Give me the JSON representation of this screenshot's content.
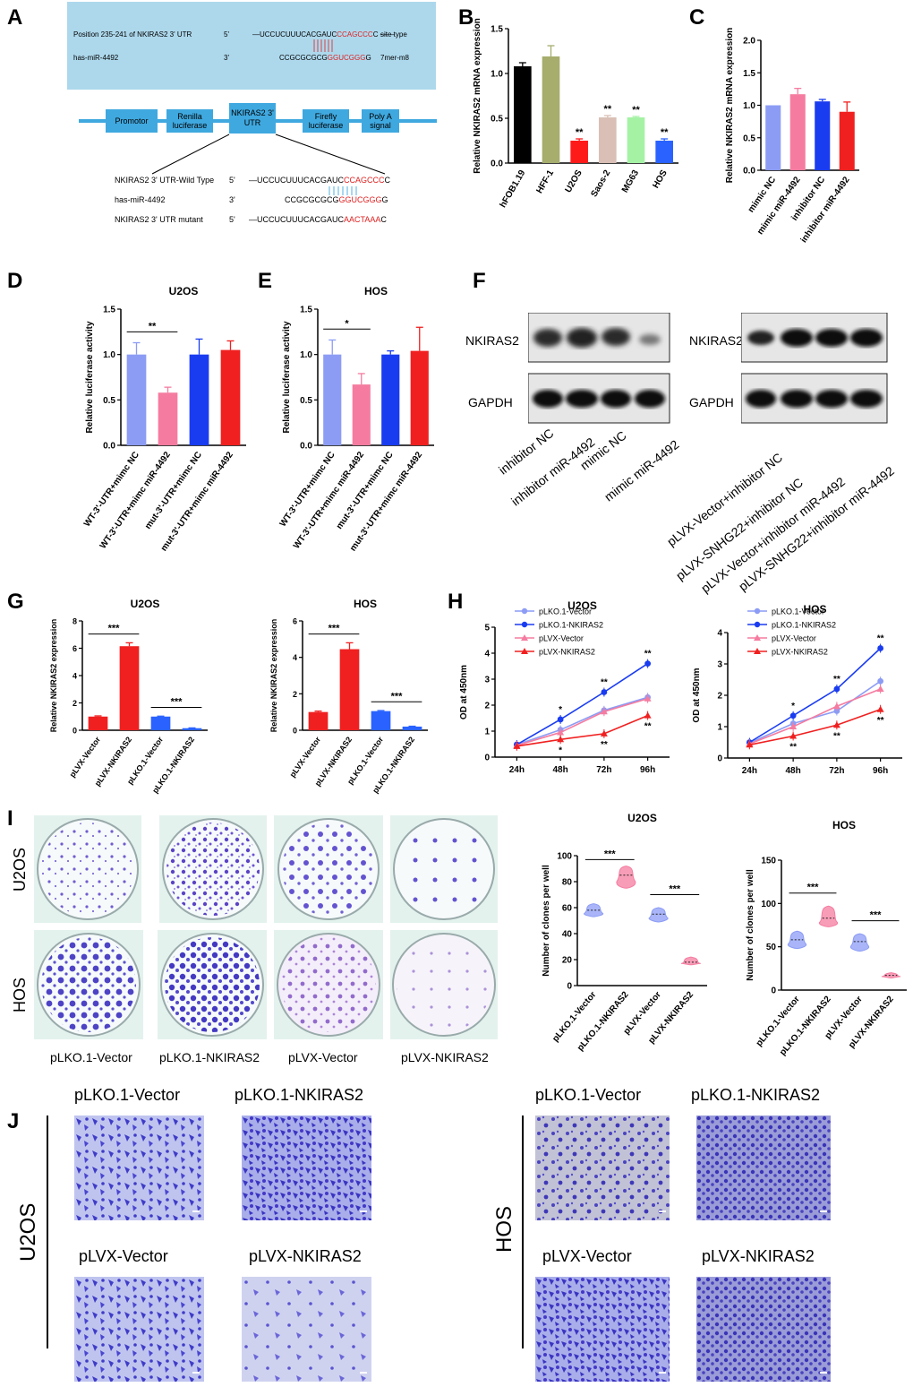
{
  "figure": {
    "panels": [
      "A",
      "B",
      "C",
      "D",
      "E",
      "F",
      "G",
      "H",
      "I",
      "J"
    ]
  },
  "panelA": {
    "row1_left": "Position 235-241 of NKIRAS2  3'  UTR",
    "row1_mid": "5'",
    "row1_seq_black": "—UCCUCUUUCACGAUC",
    "row1_seq_red": "CCAGCCC",
    "row1_seq_end": "C",
    "row1_right": "site type",
    "row2_left": "has-miR-4492",
    "row2_mid": "3'",
    "row2_seq_black": "CCGCGCGCG",
    "row2_seq_red": "GGUCGGG",
    "row2_seq_end": "G",
    "row2_right": "7mer-m8",
    "boxes": [
      "Promotor",
      "Renilla luciferase",
      "NKIRAS2 3' UTR",
      "Firefly luciferase",
      "Poly A signal"
    ],
    "wt_label": "NKIRAS2  3'  UTR-Wild Type",
    "wt_end": "5'",
    "wt_seq_black": "—UCCUCUUUCACGAUC",
    "wt_seq_red": "CCAGCCC",
    "wt_seq_end": "C",
    "mir_label": "has-miR-4492",
    "mir_end": "3'",
    "mir_seq_black": "CCGCGCGCG",
    "mir_seq_red": "GGUCGGG",
    "mir_seq_end": "G",
    "mut_label": "NKIRAS2  3'  UTR mutant",
    "mut_end": "5'",
    "mut_seq_black": "—UCCUCUUUCACGAUC",
    "mut_seq_red": "AACTAAA",
    "mut_seq_end": "C"
  },
  "panelF": {
    "left_bands": [
      "NKIRAS2",
      "GAPDH"
    ],
    "right_bands": [
      "NKIRAS2",
      "GAPDH"
    ],
    "left_lanes": [
      "inhibitor NC",
      "inhibitor miR-4492",
      "mimic NC",
      "mimic miR-4492"
    ],
    "right_lanes": [
      "pLVX-Vector+inhibitor NC",
      "pLVX-SNHG22+inhibitor NC",
      "pLVX-Vector+inhibitor miR-4492",
      "pLVX-SNHG22+inhibitor miR-4492"
    ]
  },
  "panelI": {
    "rows": [
      "U2OS",
      "HOS"
    ],
    "cols": [
      "pLKO.1-Vector",
      "pLKO.1-NKIRAS2",
      "pLVX-Vector",
      "pLVX-NKIRAS2"
    ]
  },
  "panelJ": {
    "left_cell": "U2OS",
    "right_cell": "HOS",
    "top_titles": [
      "pLKO.1-Vector",
      "pLKO.1-NKIRAS2"
    ],
    "bottom_titles": [
      "pLVX-Vector",
      "pLVX-NKIRAS2"
    ]
  },
  "colors": {
    "black": "#000000",
    "olive": "#a6ad6d",
    "red": "#ff1a1a",
    "tan": "#d9bfb5",
    "green": "#a5f2a5",
    "blue": "#2962ff",
    "periwinkle": "#8c9cf5",
    "pink": "#f57ca0",
    "royal": "#1a3cf0",
    "crimson": "#f02020",
    "lightblue_box": "#add8ec",
    "stain": "#4a3fbf"
  },
  "chart_data": [
    {
      "id": "B",
      "type": "bar",
      "ylabel": "Relative NKIRAS2 mRNA expression",
      "categories": [
        "hFOB1.19",
        "HFF-1",
        "U2OS",
        "Saos-2",
        "MG63",
        "HOS"
      ],
      "values": [
        1.08,
        1.19,
        0.25,
        0.51,
        0.51,
        0.25
      ],
      "errors": [
        0.04,
        0.12,
        0.02,
        0.02,
        0.01,
        0.02
      ],
      "significance": [
        "",
        "",
        "**",
        "**",
        "**",
        "**"
      ],
      "colors": [
        "#000000",
        "#a6ad6d",
        "#ff1a1a",
        "#d9bfb5",
        "#a5f2a5",
        "#2962ff"
      ],
      "ylim": [
        0,
        1.5
      ],
      "yticks": [
        "0.0",
        "0.5",
        "1.0",
        "1.5"
      ]
    },
    {
      "id": "C",
      "type": "bar",
      "ylabel": "Relative NKIRAS2 mRNA expression",
      "categories": [
        "mimic NC",
        "mimic miR-4492",
        "inhibitor NC",
        "inhibitor miR-4492"
      ],
      "values": [
        1.0,
        1.17,
        1.06,
        0.9
      ],
      "errors": [
        0.0,
        0.09,
        0.03,
        0.15
      ],
      "colors": [
        "#8c9cf5",
        "#f57ca0",
        "#1a3cf0",
        "#f02020"
      ],
      "ylim": [
        0,
        2.0
      ],
      "yticks": [
        "0.0",
        "0.5",
        "1.0",
        "1.5",
        "2.0"
      ]
    },
    {
      "id": "D",
      "type": "bar",
      "title": "U2OS",
      "ylabel": "Relative luciferase activity",
      "categories": [
        "WT-3'-UTR+mimc NC",
        "WT-3'-UTR+mimc miR-4492",
        "mut-3'-UTR+mimc NC",
        "mut-3'-UTR+mimc miR-4492"
      ],
      "values": [
        1.0,
        0.58,
        1.0,
        1.05
      ],
      "errors": [
        0.13,
        0.06,
        0.17,
        0.1
      ],
      "colors": [
        "#8c9cf5",
        "#f57ca0",
        "#1a3cf0",
        "#f02020"
      ],
      "bracket": {
        "from": 0,
        "to": 1,
        "label": "**"
      },
      "ylim": [
        0,
        1.5
      ],
      "yticks": [
        "0.0",
        "0.5",
        "1.0",
        "1.5"
      ]
    },
    {
      "id": "E",
      "type": "bar",
      "title": "HOS",
      "ylabel": "Relative luciferase activity",
      "categories": [
        "WT-3'-UTR+mimc NC",
        "WT-3'-UTR+mimc miR-4492",
        "mut-3'-UTR+mimc NC",
        "mut-3'-UTR+mimc miR-4492"
      ],
      "values": [
        1.0,
        0.67,
        1.0,
        1.04
      ],
      "errors": [
        0.16,
        0.12,
        0.04,
        0.26
      ],
      "colors": [
        "#8c9cf5",
        "#f57ca0",
        "#1a3cf0",
        "#f02020"
      ],
      "bracket": {
        "from": 0,
        "to": 1,
        "label": "*"
      },
      "ylim": [
        0,
        1.5
      ],
      "yticks": [
        "0.0",
        "0.5",
        "1.0",
        "1.5"
      ]
    },
    {
      "id": "G1",
      "type": "bar",
      "title": "U2OS",
      "ylabel": "Relative NKIRAS2 expression",
      "categories": [
        "pLVX-Vector",
        "pLVX-NKIRAS2",
        "pLKO.1-Vector",
        "pLKO.1-NKIRAS2"
      ],
      "values": [
        1.0,
        6.15,
        1.0,
        0.15
      ],
      "errors": [
        0.05,
        0.25,
        0.03,
        0.02
      ],
      "colors": [
        "#f02020",
        "#f02020",
        "#2962ff",
        "#2962ff"
      ],
      "brackets": [
        {
          "from": 0,
          "to": 1,
          "label": "***"
        },
        {
          "from": 2,
          "to": 3,
          "label": "***"
        }
      ],
      "ylim": [
        0,
        8
      ],
      "yticks": [
        "0",
        "2",
        "4",
        "6",
        "8"
      ]
    },
    {
      "id": "G2",
      "type": "bar",
      "title": "HOS",
      "ylabel": "Relative NKIRAS2 expression",
      "categories": [
        "pLVX-Vector",
        "pLVX-NKIRAS2",
        "pLKO.1-Vector",
        "pLKO.1-NKIRAS2"
      ],
      "values": [
        1.0,
        4.45,
        1.05,
        0.2
      ],
      "errors": [
        0.05,
        0.35,
        0.03,
        0.02
      ],
      "colors": [
        "#f02020",
        "#f02020",
        "#2962ff",
        "#2962ff"
      ],
      "brackets": [
        {
          "from": 0,
          "to": 1,
          "label": "***"
        },
        {
          "from": 2,
          "to": 3,
          "label": "***"
        }
      ],
      "ylim": [
        0,
        6
      ],
      "yticks": [
        "0",
        "2",
        "4",
        "6"
      ]
    },
    {
      "id": "H1",
      "type": "line",
      "title": "U2OS",
      "ylabel": "OD at 450nm",
      "categories": [
        "24h",
        "48h",
        "72h",
        "96h"
      ],
      "series": [
        {
          "name": "pLKO.1-Vector",
          "values": [
            0.48,
            1.05,
            1.8,
            2.3
          ],
          "color": "#8c9cf5",
          "marker": "circle"
        },
        {
          "name": "pLKO.1-NKIRAS2",
          "values": [
            0.48,
            1.45,
            2.5,
            3.6
          ],
          "color": "#1a3cf0",
          "marker": "circle"
        },
        {
          "name": "pLVX-Vector",
          "values": [
            0.45,
            0.95,
            1.75,
            2.25
          ],
          "color": "#f57ca0",
          "marker": "triangle"
        },
        {
          "name": "pLVX-NKIRAS2",
          "values": [
            0.42,
            0.68,
            0.9,
            1.6
          ],
          "color": "#f02020",
          "marker": "triangle"
        }
      ],
      "sig_top": [
        "",
        "*",
        "**",
        "**"
      ],
      "sig_bottom": [
        "",
        "*",
        "**",
        "**"
      ],
      "ylim": [
        0,
        5
      ],
      "yticks": [
        "0",
        "1",
        "2",
        "3",
        "4",
        "5"
      ]
    },
    {
      "id": "H2",
      "type": "line",
      "title": "HOS",
      "ylabel": "OD at 450nm",
      "categories": [
        "24h",
        "48h",
        "72h",
        "96h"
      ],
      "series": [
        {
          "name": "pLKO.1-Vector",
          "values": [
            0.48,
            1.1,
            1.5,
            2.45
          ],
          "color": "#8c9cf5",
          "marker": "circle"
        },
        {
          "name": "pLKO.1-NKIRAS2",
          "values": [
            0.5,
            1.35,
            2.2,
            3.5
          ],
          "color": "#1a3cf0",
          "marker": "circle"
        },
        {
          "name": "pLVX-Vector",
          "values": [
            0.45,
            1.0,
            1.65,
            2.2
          ],
          "color": "#f57ca0",
          "marker": "triangle"
        },
        {
          "name": "pLVX-NKIRAS2",
          "values": [
            0.42,
            0.7,
            1.05,
            1.55
          ],
          "color": "#f02020",
          "marker": "triangle"
        }
      ],
      "sig_top": [
        "",
        "*",
        "**",
        "**"
      ],
      "sig_bottom": [
        "",
        "**",
        "**",
        "**"
      ],
      "ylim": [
        0,
        4
      ],
      "yticks": [
        "0",
        "1",
        "2",
        "3",
        "4"
      ]
    },
    {
      "id": "I1",
      "type": "violin",
      "title": "U2OS",
      "ylabel": "Number of clones per well",
      "categories": [
        "pLKO.1-Vector",
        "pLKO.1-NKIRAS2",
        "pLVX-Vector",
        "pLVX-NKIRAS2"
      ],
      "ranges": [
        [
          53,
          63
        ],
        [
          75,
          92
        ],
        [
          49,
          60
        ],
        [
          16,
          22
        ]
      ],
      "medians": [
        58,
        85,
        55,
        18
      ],
      "colors": [
        "#8c9cf5",
        "#f57ca0",
        "#8c9cf5",
        "#f57ca0"
      ],
      "brackets": [
        {
          "from": 0,
          "to": 1,
          "label": "***"
        },
        {
          "from": 2,
          "to": 3,
          "label": "***"
        }
      ],
      "ylim": [
        0,
        100
      ],
      "yticks": [
        "0",
        "20",
        "40",
        "60",
        "80",
        "100"
      ]
    },
    {
      "id": "I2",
      "type": "violin",
      "title": "HOS",
      "ylabel": "Number of clones per well",
      "categories": [
        "pLKO.1-Vector",
        "pLKO.1-NKIRAS2",
        "pLVX-Vector",
        "pLVX-NKIRAS2"
      ],
      "ranges": [
        [
          48,
          68
        ],
        [
          73,
          97
        ],
        [
          45,
          65
        ],
        [
          14,
          20
        ]
      ],
      "medians": [
        58,
        83,
        56,
        17
      ],
      "colors": [
        "#8c9cf5",
        "#f57ca0",
        "#8c9cf5",
        "#f57ca0"
      ],
      "brackets": [
        {
          "from": 0,
          "to": 1,
          "label": "***"
        },
        {
          "from": 2,
          "to": 3,
          "label": "***"
        }
      ],
      "ylim": [
        0,
        150
      ],
      "yticks": [
        "0",
        "50",
        "100",
        "150"
      ]
    }
  ]
}
